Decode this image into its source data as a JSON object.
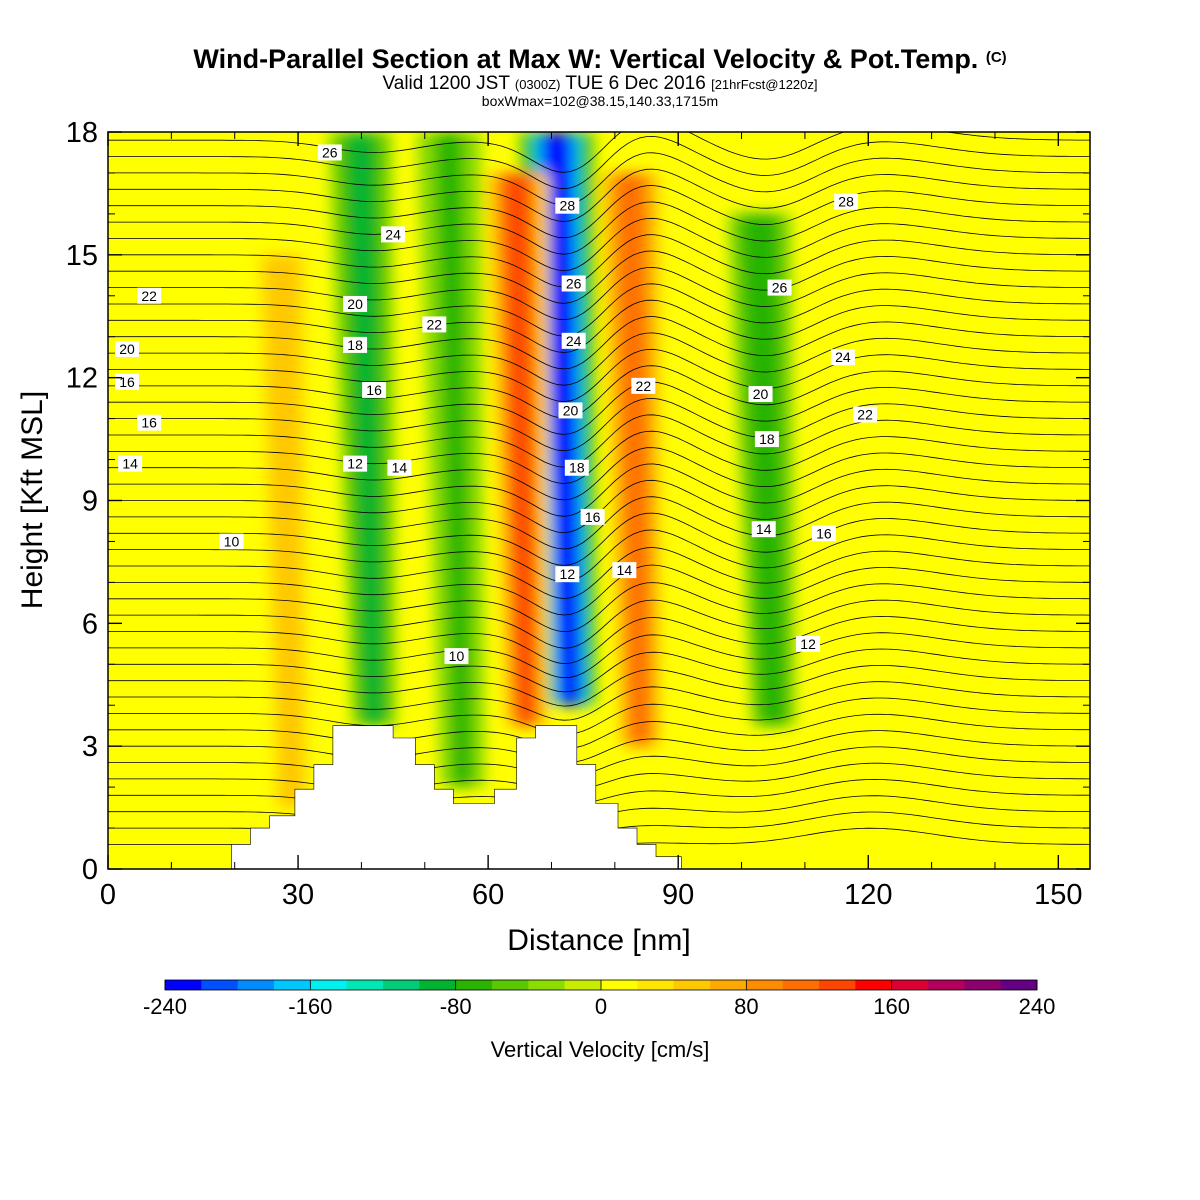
{
  "header": {
    "title": "Wind-Parallel Section at Max W: Vertical Velocity & Pot.Temp.",
    "copyright": "(C)",
    "valid_prefix": "Valid 1200 JST",
    "valid_utc": "(0300Z)",
    "valid_date": "TUE 6 Dec 2016",
    "forecast": "[21hrFcst@1220z]",
    "box_info": "boxWmax=102@38.15,140.33,1715m"
  },
  "chart_data": {
    "type": "heatmap",
    "xlabel": "Distance [nm]",
    "ylabel": "Height [Kft MSL]",
    "xlim": [
      0,
      155
    ],
    "ylim": [
      0,
      18
    ],
    "xticks": [
      0,
      30,
      60,
      90,
      120,
      150
    ],
    "yticks": [
      0,
      3,
      6,
      9,
      12,
      15,
      18
    ],
    "colorbar": {
      "label": "Vertical Velocity [cm/s]",
      "ticks": [
        -240,
        -160,
        -80,
        0,
        80,
        160,
        240
      ],
      "colors": [
        "#0000ff",
        "#0050ff",
        "#008cff",
        "#00c8ff",
        "#00f0f0",
        "#00e6b4",
        "#00cd78",
        "#00b432",
        "#28b400",
        "#5ac800",
        "#8cdc00",
        "#c8ec00",
        "#ffff00",
        "#ffe600",
        "#ffc800",
        "#ffaa00",
        "#ff8c00",
        "#ff6e00",
        "#ff4600",
        "#ff0000",
        "#dc0032",
        "#b4005a",
        "#8c006e",
        "#640082"
      ]
    },
    "velocity_features": [
      {
        "kind": "downdraft",
        "x": 73,
        "y_top": 18,
        "y_bottom": 4,
        "peak": -240
      },
      {
        "kind": "downdraft",
        "x": 42,
        "y_top": 18,
        "y_bottom": 3.5,
        "peak": -90
      },
      {
        "kind": "downdraft",
        "x": 56,
        "y_top": 18,
        "y_bottom": 2,
        "peak": -70
      },
      {
        "kind": "downdraft",
        "x": 105,
        "y_top": 16,
        "y_bottom": 3.5,
        "peak": -80
      },
      {
        "kind": "updraft",
        "x": 66,
        "y_top": 17,
        "y_bottom": 3.5,
        "peak": 130
      },
      {
        "kind": "updraft",
        "x": 84,
        "y_top": 17,
        "y_bottom": 3,
        "peak": 110
      },
      {
        "kind": "updraft",
        "x": 29,
        "y_top": 15,
        "y_bottom": 1.5,
        "peak": 50
      }
    ],
    "terrain_kft": [
      [
        0,
        0
      ],
      [
        19.5,
        0
      ],
      [
        19.5,
        0.6
      ],
      [
        22.5,
        0.6
      ],
      [
        22.5,
        1.0
      ],
      [
        25.5,
        1.0
      ],
      [
        25.5,
        1.3
      ],
      [
        29.5,
        1.3
      ],
      [
        29.5,
        1.95
      ],
      [
        32.5,
        1.95
      ],
      [
        32.5,
        2.55
      ],
      [
        35.5,
        2.55
      ],
      [
        35.5,
        3.5
      ],
      [
        45,
        3.5
      ],
      [
        45,
        3.2
      ],
      [
        48.5,
        3.2
      ],
      [
        48.5,
        2.55
      ],
      [
        51.5,
        2.55
      ],
      [
        51.5,
        1.95
      ],
      [
        54.5,
        1.95
      ],
      [
        54.5,
        1.6
      ],
      [
        61,
        1.6
      ],
      [
        61,
        1.95
      ],
      [
        64.5,
        1.95
      ],
      [
        64.5,
        3.2
      ],
      [
        67.5,
        3.2
      ],
      [
        67.5,
        3.5
      ],
      [
        74,
        3.5
      ],
      [
        74,
        2.55
      ],
      [
        77,
        2.55
      ],
      [
        77,
        1.6
      ],
      [
        80.5,
        1.6
      ],
      [
        80.5,
        1.0
      ],
      [
        83.5,
        1.0
      ],
      [
        83.5,
        0.6
      ],
      [
        86.5,
        0.6
      ],
      [
        86.5,
        0.3
      ],
      [
        90.5,
        0.3
      ],
      [
        90.5,
        0
      ],
      [
        155,
        0
      ]
    ],
    "theta_labels": [
      {
        "text": "26",
        "x": 35,
        "y": 17.5
      },
      {
        "text": "24",
        "x": 45,
        "y": 15.5
      },
      {
        "text": "22",
        "x": 6.5,
        "y": 14.0
      },
      {
        "text": "20",
        "x": 39,
        "y": 13.8
      },
      {
        "text": "22",
        "x": 51.5,
        "y": 13.3
      },
      {
        "text": "18",
        "x": 39,
        "y": 12.8
      },
      {
        "text": "20",
        "x": 3,
        "y": 12.7
      },
      {
        "text": "16",
        "x": 3,
        "y": 11.9
      },
      {
        "text": "16",
        "x": 42,
        "y": 11.7
      },
      {
        "text": "16",
        "x": 6.5,
        "y": 10.9
      },
      {
        "text": "14",
        "x": 3.5,
        "y": 9.9
      },
      {
        "text": "12",
        "x": 39,
        "y": 9.9
      },
      {
        "text": "14",
        "x": 46,
        "y": 9.8
      },
      {
        "text": "10",
        "x": 19.5,
        "y": 8.0
      },
      {
        "text": "10",
        "x": 55,
        "y": 5.2
      },
      {
        "text": "28",
        "x": 72.5,
        "y": 16.2
      },
      {
        "text": "26",
        "x": 73.5,
        "y": 14.3
      },
      {
        "text": "24",
        "x": 73.5,
        "y": 12.9
      },
      {
        "text": "20",
        "x": 73,
        "y": 11.2
      },
      {
        "text": "18",
        "x": 74,
        "y": 9.8
      },
      {
        "text": "16",
        "x": 76.5,
        "y": 8.6
      },
      {
        "text": "12",
        "x": 72.5,
        "y": 7.2
      },
      {
        "text": "14",
        "x": 81.5,
        "y": 7.3
      },
      {
        "text": "22",
        "x": 84.5,
        "y": 11.8
      },
      {
        "text": "28",
        "x": 116.5,
        "y": 16.3
      },
      {
        "text": "26",
        "x": 106,
        "y": 14.2
      },
      {
        "text": "24",
        "x": 116,
        "y": 12.5
      },
      {
        "text": "20",
        "x": 103,
        "y": 11.6
      },
      {
        "text": "22",
        "x": 119.5,
        "y": 11.1
      },
      {
        "text": "18",
        "x": 104,
        "y": 10.5
      },
      {
        "text": "14",
        "x": 103.5,
        "y": 8.3
      },
      {
        "text": "16",
        "x": 113,
        "y": 8.2
      },
      {
        "text": "12",
        "x": 110.5,
        "y": 5.5
      }
    ]
  }
}
